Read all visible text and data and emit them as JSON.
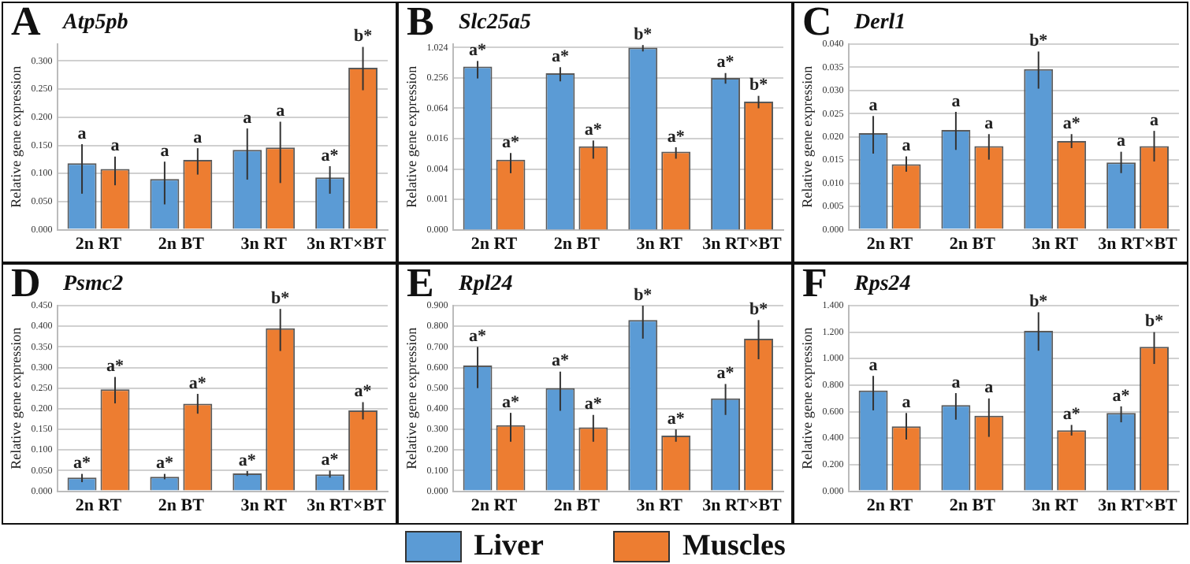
{
  "chart_data": [
    {
      "type": "bar",
      "title": "A",
      "subtitle": "Atp5pb",
      "ylabel": "Relative gene expression",
      "categories": [
        "2n RT",
        "2n BT",
        "3n RT",
        "3n RT×BT"
      ],
      "ylim": [
        0,
        0.33
      ],
      "yticks": [
        {
          "value": 0,
          "label": "0.000"
        },
        {
          "value": 0.05,
          "label": "0.050"
        },
        {
          "value": 0.1,
          "label": "0.100"
        },
        {
          "value": 0.15,
          "label": "0.150"
        },
        {
          "value": 0.2,
          "label": "0.200"
        },
        {
          "value": 0.25,
          "label": "0.250"
        },
        {
          "value": 0.3,
          "label": "0.300"
        }
      ],
      "grid": "y",
      "series": [
        {
          "color": "#5b9bd5",
          "values": [
            0.118,
            0.09,
            0.142,
            0.093
          ],
          "errors": [
            [
              0.064,
              0.152
            ],
            [
              0.045,
              0.121
            ],
            [
              0.089,
              0.18
            ],
            [
              0.064,
              0.113
            ]
          ],
          "value_labels": [
            "a",
            "a",
            "a",
            "a*"
          ]
        },
        {
          "color": "#ed7d31",
          "values": [
            0.108,
            0.124,
            0.146,
            0.288
          ],
          "errors": [
            [
              0.079,
              0.13
            ],
            [
              0.098,
              0.145
            ],
            [
              0.083,
              0.192
            ],
            [
              0.248,
              0.325
            ]
          ],
          "value_labels": [
            "a",
            "a",
            "a",
            "b*"
          ]
        }
      ]
    },
    {
      "type": "bar",
      "title": "B",
      "subtitle": "Slc25a5",
      "ylabel": "Relative gene expression",
      "categories": [
        "2n RT",
        "2n BT",
        "3n RT",
        "3n RT×BT"
      ],
      "log": true,
      "ylim": [
        0.00025,
        1.2
      ],
      "yticks": [
        {
          "value": 0.00025,
          "label": "0.000"
        },
        0.001,
        0.004,
        0.016,
        0.064,
        0.256,
        1.024
      ],
      "grid": "y",
      "series": [
        {
          "color": "#5b9bd5",
          "values": [
            0.43,
            0.317,
            1.02,
            0.256
          ],
          "errors": [
            [
              0.25,
              0.556
            ],
            [
              0.219,
              0.418
            ],
            [
              0.86,
              1.15
            ],
            [
              0.197,
              0.32
            ]
          ],
          "value_labels": [
            "a*",
            "a*",
            "b*",
            "a*"
          ]
        },
        {
          "color": "#ed7d31",
          "values": [
            0.0061,
            0.0113,
            0.0088,
            0.087
          ],
          "errors": [
            [
              0.0033,
              0.0083
            ],
            [
              0.0064,
              0.0147
            ],
            [
              0.0064,
              0.0108
            ],
            [
              0.064,
              0.113
            ]
          ],
          "value_labels": [
            "a*",
            "a*",
            "a*",
            "b*"
          ]
        }
      ]
    },
    {
      "type": "bar",
      "title": "C",
      "subtitle": "Derl1",
      "ylabel": "Relative gene expression",
      "categories": [
        "2n RT",
        "2n BT",
        "3n RT",
        "3n RT×BT"
      ],
      "ylim": [
        0,
        0.04
      ],
      "yticks": [
        {
          "value": 0,
          "label": "0.000"
        },
        {
          "value": 0.005,
          "label": "0.005"
        },
        {
          "value": 0.01,
          "label": "0.010"
        },
        {
          "value": 0.015,
          "label": "0.015"
        },
        {
          "value": 0.02,
          "label": "0.020"
        },
        {
          "value": 0.025,
          "label": "0.025"
        },
        {
          "value": 0.03,
          "label": "0.030"
        },
        {
          "value": 0.035,
          "label": "0.035"
        },
        {
          "value": 0.04,
          "label": "0.040"
        }
      ],
      "grid": "y",
      "series": [
        {
          "color": "#5b9bd5",
          "values": [
            0.0208,
            0.0215,
            0.0346,
            0.0145
          ],
          "errors": [
            [
              0.0164,
              0.0245
            ],
            [
              0.0172,
              0.0254
            ],
            [
              0.0304,
              0.0384
            ],
            [
              0.0122,
              0.0168
            ]
          ],
          "value_labels": [
            "a",
            "a",
            "b*",
            "a"
          ]
        },
        {
          "color": "#ed7d31",
          "values": [
            0.0141,
            0.018,
            0.0191,
            0.018
          ],
          "errors": [
            [
              0.0125,
              0.0158
            ],
            [
              0.0151,
              0.0206
            ],
            [
              0.0176,
              0.0206
            ],
            [
              0.0147,
              0.0213
            ]
          ],
          "value_labels": [
            "a",
            "a",
            "a*",
            "a"
          ]
        }
      ]
    },
    {
      "type": "bar",
      "title": "D",
      "subtitle": "Psmc2",
      "ylabel": "Relative gene expression",
      "categories": [
        "2n RT",
        "2n BT",
        "3n RT",
        "3n RT×BT"
      ],
      "ylim": [
        0,
        0.45
      ],
      "yticks": [
        {
          "value": 0,
          "label": "0.000"
        },
        {
          "value": 0.05,
          "label": "0.050"
        },
        {
          "value": 0.1,
          "label": "0.100"
        },
        {
          "value": 0.15,
          "label": "0.150"
        },
        {
          "value": 0.2,
          "label": "0.200"
        },
        {
          "value": 0.25,
          "label": "0.250"
        },
        {
          "value": 0.3,
          "label": "0.300"
        },
        {
          "value": 0.35,
          "label": "0.350"
        },
        {
          "value": 0.4,
          "label": "0.400"
        },
        {
          "value": 0.45,
          "label": "0.450"
        }
      ],
      "grid": "y",
      "series": [
        {
          "color": "#5b9bd5",
          "values": [
            0.033,
            0.035,
            0.043,
            0.041
          ],
          "errors": [
            [
              0.022,
              0.042
            ],
            [
              0.029,
              0.042
            ],
            [
              0.037,
              0.049
            ],
            [
              0.033,
              0.05
            ]
          ],
          "value_labels": [
            "a*",
            "a*",
            "a*",
            "a*"
          ]
        },
        {
          "color": "#ed7d31",
          "values": [
            0.247,
            0.212,
            0.395,
            0.196
          ],
          "errors": [
            [
              0.213,
              0.277
            ],
            [
              0.188,
              0.236
            ],
            [
              0.34,
              0.442
            ],
            [
              0.174,
              0.216
            ]
          ],
          "value_labels": [
            "a*",
            "a*",
            "b*",
            "a*"
          ]
        }
      ]
    },
    {
      "type": "bar",
      "title": "E",
      "subtitle": "Rpl24",
      "ylabel": "Relative gene expression",
      "categories": [
        "2n RT",
        "2n BT",
        "3n RT",
        "3n RT×BT"
      ],
      "ylim": [
        0,
        0.9
      ],
      "yticks": [
        {
          "value": 0,
          "label": "0.000"
        },
        {
          "value": 0.1,
          "label": "0.100"
        },
        {
          "value": 0.2,
          "label": "0.200"
        },
        {
          "value": 0.3,
          "label": "0.300"
        },
        {
          "value": 0.4,
          "label": "0.400"
        },
        {
          "value": 0.5,
          "label": "0.500"
        },
        {
          "value": 0.6,
          "label": "0.600"
        },
        {
          "value": 0.7,
          "label": "0.700"
        },
        {
          "value": 0.8,
          "label": "0.800"
        },
        {
          "value": 0.9,
          "label": "0.900"
        }
      ],
      "grid": "y",
      "series": [
        {
          "color": "#5b9bd5",
          "values": [
            0.61,
            0.5,
            0.83,
            0.45
          ],
          "errors": [
            [
              0.5,
              0.7
            ],
            [
              0.39,
              0.58
            ],
            [
              0.74,
              0.9
            ],
            [
              0.37,
              0.52
            ]
          ],
          "value_labels": [
            "a*",
            "a*",
            "b*",
            "a*"
          ]
        },
        {
          "color": "#ed7d31",
          "values": [
            0.32,
            0.31,
            0.27,
            0.74
          ],
          "errors": [
            [
              0.24,
              0.38
            ],
            [
              0.24,
              0.37
            ],
            [
              0.24,
              0.3
            ],
            [
              0.64,
              0.83
            ]
          ],
          "value_labels": [
            "a*",
            "a*",
            "a*",
            "b*"
          ]
        }
      ]
    },
    {
      "type": "bar",
      "title": "F",
      "subtitle": "Rps24",
      "ylabel": "Relative gene expression",
      "categories": [
        "2n RT",
        "2n BT",
        "3n RT",
        "3n RT×BT"
      ],
      "ylim": [
        0,
        1.4
      ],
      "yticks": [
        {
          "value": 0,
          "label": "0.000"
        },
        {
          "value": 0.2,
          "label": "0.200"
        },
        {
          "value": 0.4,
          "label": "0.400"
        },
        {
          "value": 0.6,
          "label": "0.600"
        },
        {
          "value": 0.8,
          "label": "0.800"
        },
        {
          "value": 1,
          "label": "1.000"
        },
        {
          "value": 1.2,
          "label": "1.200"
        },
        {
          "value": 1.4,
          "label": "1.400"
        }
      ],
      "grid": "y",
      "legend": "bottom",
      "series": [
        {
          "name": "Liver",
          "color": "#5b9bd5",
          "values": [
            0.76,
            0.65,
            1.21,
            0.59
          ],
          "errors": [
            [
              0.61,
              0.87
            ],
            [
              0.54,
              0.74
            ],
            [
              1.06,
              1.35
            ],
            [
              0.52,
              0.64
            ]
          ],
          "value_labels": [
            "a",
            "a",
            "b*",
            "a*"
          ]
        },
        {
          "name": "Muscles",
          "color": "#ed7d31",
          "values": [
            0.49,
            0.57,
            0.46,
            1.09
          ],
          "errors": [
            [
              0.39,
              0.59
            ],
            [
              0.41,
              0.7
            ],
            [
              0.42,
              0.5
            ],
            [
              0.96,
              1.2
            ]
          ],
          "value_labels": [
            "a",
            "a",
            "a*",
            "b*"
          ]
        }
      ]
    }
  ]
}
